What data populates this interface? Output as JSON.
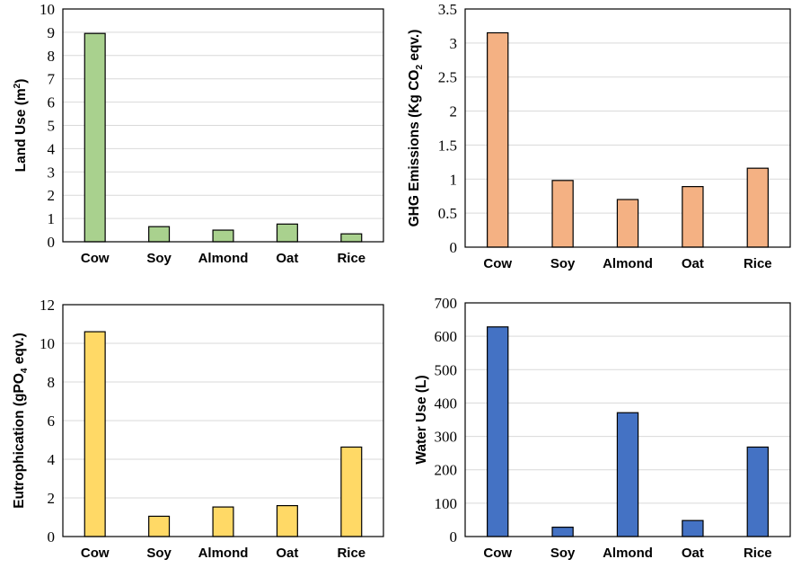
{
  "chart_data": [
    {
      "type": "bar",
      "categories": [
        "Cow",
        "Soy",
        "Almond",
        "Oat",
        "Rice"
      ],
      "values": [
        8.95,
        0.65,
        0.5,
        0.76,
        0.34
      ],
      "ylabel": {
        "main": "Land Use (m",
        "sup": "2",
        "sub": "",
        "tail": ")"
      },
      "ylim": [
        0,
        10
      ],
      "yticks": [
        0,
        1,
        2,
        3,
        4,
        5,
        6,
        7,
        8,
        9,
        10
      ],
      "color": "#a9d18e",
      "grid": true
    },
    {
      "type": "bar",
      "categories": [
        "Cow",
        "Soy",
        "Almond",
        "Oat",
        "Rice"
      ],
      "values": [
        3.15,
        0.98,
        0.7,
        0.89,
        1.16
      ],
      "ylabel": {
        "main": "GHG Emissions (Kg CO",
        "sup": "",
        "sub": "2",
        "tail": " eqv.)"
      },
      "ylim": [
        0,
        3.5
      ],
      "yticks": [
        0,
        0.5,
        1,
        1.5,
        2,
        2.5,
        3,
        3.5
      ],
      "color": "#f4b183",
      "grid": true
    },
    {
      "type": "bar",
      "categories": [
        "Cow",
        "Soy",
        "Almond",
        "Oat",
        "Rice"
      ],
      "values": [
        10.6,
        1.05,
        1.53,
        1.6,
        4.63
      ],
      "ylabel": {
        "main": "Eutrophication (gPO",
        "sup": "",
        "sub": "4",
        "tail": " eqv.)"
      },
      "ylim": [
        0,
        12
      ],
      "yticks": [
        0,
        2,
        4,
        6,
        8,
        10,
        12
      ],
      "color": "#ffd966",
      "grid": true
    },
    {
      "type": "bar",
      "categories": [
        "Cow",
        "Soy",
        "Almond",
        "Oat",
        "Rice"
      ],
      "values": [
        628,
        28,
        371,
        48,
        268
      ],
      "ylabel": {
        "main": "Water Use (L)",
        "sup": "",
        "sub": "",
        "tail": ""
      },
      "ylim": [
        0,
        700
      ],
      "yticks": [
        0,
        100,
        200,
        300,
        400,
        500,
        600,
        700
      ],
      "color": "#4472c4",
      "grid": true
    }
  ]
}
